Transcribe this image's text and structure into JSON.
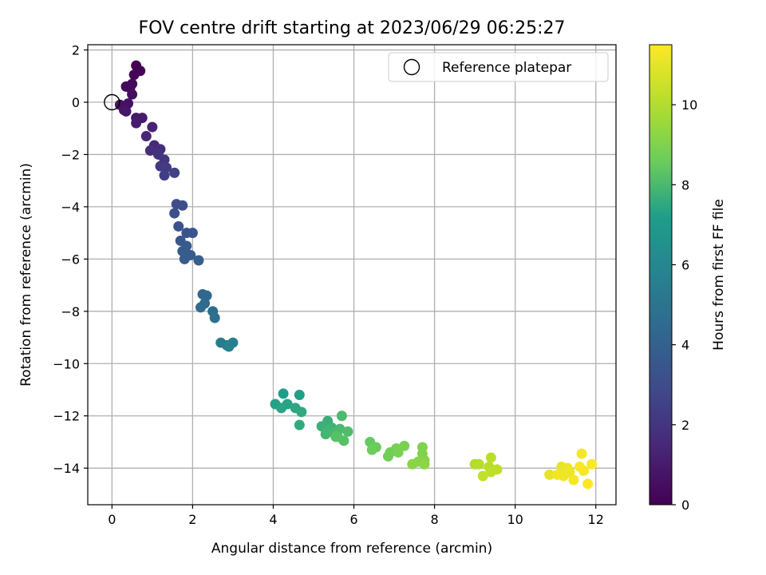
{
  "chart_data": {
    "type": "scatter",
    "title": "FOV centre drift starting at 2023/06/29 06:25:27",
    "xlabel": "Angular distance from reference (arcmin)",
    "ylabel": "Rotation from reference (arcmin)",
    "xlim": [
      -0.6,
      12.5
    ],
    "ylim": [
      -15.4,
      2.2
    ],
    "xticks": [
      0,
      2,
      4,
      6,
      8,
      10,
      12
    ],
    "yticks": [
      2,
      0,
      -2,
      -4,
      -6,
      -8,
      -10,
      -12,
      -14
    ],
    "xtick_labels": [
      "0",
      "2",
      "4",
      "6",
      "8",
      "10",
      "12"
    ],
    "ytick_labels": [
      "2",
      "0",
      "−2",
      "−4",
      "−6",
      "−8",
      "−10",
      "−12",
      "−14"
    ],
    "grid": true,
    "legend": {
      "position": "top-right",
      "entries": [
        {
          "label": "Reference platepar",
          "marker": "open-circle"
        }
      ]
    },
    "reference_point": {
      "x": 0,
      "y": 0
    },
    "colorbar": {
      "label": "Hours from first FF file",
      "range": [
        0,
        11.5
      ],
      "ticks": [
        0,
        2,
        4,
        6,
        8,
        10
      ],
      "tick_labels": [
        "0",
        "2",
        "4",
        "6",
        "8",
        "10"
      ],
      "colormap": "viridis",
      "colormap_stops": [
        "#440154",
        "#482777",
        "#3f4a8a",
        "#31678e",
        "#26838f",
        "#1f9d8a",
        "#6cce5a",
        "#b6de2b",
        "#fee825"
      ]
    },
    "series": [
      {
        "points": [
          [
            0.6,
            1.4,
            0.0
          ],
          [
            0.7,
            1.2,
            0.1
          ],
          [
            0.55,
            1.05,
            0.15
          ],
          [
            0.5,
            0.7,
            0.25
          ],
          [
            0.35,
            0.6,
            0.3
          ],
          [
            0.45,
            0.55,
            0.35
          ],
          [
            0.5,
            0.3,
            0.45
          ],
          [
            0.2,
            -0.1,
            0.55
          ],
          [
            0.4,
            -0.05,
            0.6
          ],
          [
            0.3,
            -0.3,
            0.7
          ],
          [
            0.35,
            -0.35,
            0.8
          ],
          [
            0.6,
            -0.6,
            0.9
          ],
          [
            0.75,
            -0.6,
            1.0
          ],
          [
            0.6,
            -0.8,
            1.1
          ],
          [
            1.0,
            -0.95,
            1.3
          ],
          [
            0.85,
            -1.3,
            1.4
          ],
          [
            1.05,
            -1.65,
            1.5
          ],
          [
            1.2,
            -1.8,
            1.7
          ],
          [
            0.95,
            -1.85,
            1.8
          ],
          [
            1.15,
            -2.0,
            1.9
          ],
          [
            1.3,
            -2.2,
            2.1
          ],
          [
            1.2,
            -2.45,
            2.2
          ],
          [
            1.35,
            -2.5,
            2.3
          ],
          [
            1.3,
            -2.8,
            2.4
          ],
          [
            1.55,
            -2.7,
            2.5
          ],
          [
            1.6,
            -3.9,
            3.0
          ],
          [
            1.75,
            -3.95,
            3.05
          ],
          [
            1.55,
            -4.25,
            3.1
          ],
          [
            1.65,
            -4.75,
            3.25
          ],
          [
            1.85,
            -5.0,
            3.35
          ],
          [
            2.0,
            -5.0,
            3.4
          ],
          [
            1.7,
            -5.3,
            3.5
          ],
          [
            1.85,
            -5.5,
            3.6
          ],
          [
            1.75,
            -5.7,
            3.7
          ],
          [
            1.95,
            -5.85,
            3.75
          ],
          [
            1.8,
            -6.0,
            3.8
          ],
          [
            2.15,
            -6.05,
            3.9
          ],
          [
            2.25,
            -7.35,
            4.3
          ],
          [
            2.35,
            -7.4,
            4.35
          ],
          [
            2.3,
            -7.7,
            4.45
          ],
          [
            2.2,
            -7.85,
            4.5
          ],
          [
            2.5,
            -8.0,
            4.6
          ],
          [
            2.55,
            -8.25,
            4.7
          ],
          [
            2.7,
            -9.2,
            5.4
          ],
          [
            2.85,
            -9.3,
            5.5
          ],
          [
            3.0,
            -9.2,
            5.6
          ],
          [
            2.9,
            -9.35,
            5.65
          ],
          [
            4.25,
            -11.15,
            7.2
          ],
          [
            4.65,
            -11.2,
            7.25
          ],
          [
            4.05,
            -11.55,
            7.3
          ],
          [
            4.35,
            -11.55,
            7.35
          ],
          [
            4.2,
            -11.7,
            7.4
          ],
          [
            4.55,
            -11.7,
            7.45
          ],
          [
            4.7,
            -11.85,
            7.5
          ],
          [
            4.65,
            -12.35,
            7.55
          ],
          [
            5.35,
            -12.2,
            7.7
          ],
          [
            5.2,
            -12.4,
            7.75
          ],
          [
            5.45,
            -12.45,
            7.8
          ],
          [
            5.35,
            -12.6,
            7.85
          ],
          [
            5.3,
            -12.7,
            7.9
          ],
          [
            5.5,
            -12.65,
            7.95
          ],
          [
            5.65,
            -12.5,
            8.0
          ],
          [
            5.7,
            -12.0,
            8.05
          ],
          [
            5.85,
            -12.6,
            8.1
          ],
          [
            5.6,
            -12.8,
            8.15
          ],
          [
            5.75,
            -12.95,
            8.2
          ],
          [
            5.55,
            -12.8,
            8.25
          ],
          [
            6.4,
            -13.0,
            8.5
          ],
          [
            6.55,
            -13.2,
            8.55
          ],
          [
            6.45,
            -13.3,
            8.6
          ],
          [
            6.9,
            -13.4,
            8.7
          ],
          [
            6.85,
            -13.55,
            8.75
          ],
          [
            7.05,
            -13.25,
            8.8
          ],
          [
            7.1,
            -13.4,
            8.85
          ],
          [
            7.25,
            -13.15,
            8.9
          ],
          [
            7.7,
            -13.2,
            9.0
          ],
          [
            7.7,
            -13.45,
            9.05
          ],
          [
            7.75,
            -13.7,
            9.1
          ],
          [
            7.6,
            -13.75,
            9.15
          ],
          [
            7.45,
            -13.85,
            9.2
          ],
          [
            7.75,
            -13.85,
            9.25
          ],
          [
            9.0,
            -13.85,
            10.0
          ],
          [
            9.1,
            -13.85,
            10.05
          ],
          [
            9.35,
            -13.95,
            10.1
          ],
          [
            9.4,
            -13.6,
            10.15
          ],
          [
            9.55,
            -14.05,
            10.2
          ],
          [
            9.4,
            -14.15,
            10.25
          ],
          [
            9.2,
            -14.3,
            10.3
          ],
          [
            10.85,
            -14.25,
            11.0
          ],
          [
            11.15,
            -13.95,
            11.05
          ],
          [
            11.3,
            -14.0,
            11.1
          ],
          [
            11.35,
            -14.15,
            11.15
          ],
          [
            11.2,
            -14.3,
            11.2
          ],
          [
            11.05,
            -14.25,
            11.25
          ],
          [
            11.45,
            -14.45,
            11.3
          ],
          [
            11.65,
            -13.45,
            11.35
          ],
          [
            11.6,
            -13.95,
            11.4
          ],
          [
            11.7,
            -14.1,
            11.4
          ],
          [
            11.9,
            -13.85,
            11.45
          ],
          [
            11.8,
            -14.6,
            11.5
          ]
        ],
        "point_fields": [
          "x",
          "y",
          "hours"
        ]
      }
    ]
  }
}
